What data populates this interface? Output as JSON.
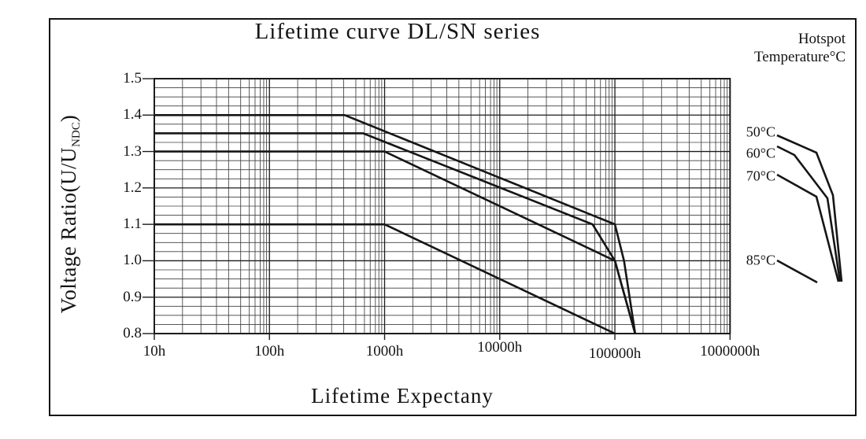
{
  "figure": {
    "title": "Lifetime curve DL/SN series",
    "x_axis_title": "Lifetime Expectany",
    "y_axis_title": {
      "prefix": "Voltage Ratio(U/U",
      "subscript": "NDC",
      "suffix": ")"
    }
  },
  "legend": {
    "title_line1": "Hotspot",
    "title_line2": "Temperature°C",
    "entries": [
      {
        "label": "50°C"
      },
      {
        "label": "60°C"
      },
      {
        "label": "70°C"
      },
      {
        "label": "85°C"
      }
    ]
  },
  "chart_data": {
    "type": "line",
    "title": "Lifetime curve DL/SN series",
    "xlabel": "Lifetime Expectany",
    "ylabel": "Voltage Ratio(U/UNDC)",
    "x_scale": "log",
    "xlim": [
      10,
      1000000
    ],
    "ylim": [
      0.8,
      1.5
    ],
    "grid": "on",
    "legend_position": "right",
    "x_tick_values": [
      10,
      100,
      1000,
      10000,
      100000,
      1000000
    ],
    "x_tick_labels": [
      "10h",
      "100h",
      "1000h",
      "10000h",
      "100000h",
      "1000000h"
    ],
    "y_tick_values": [
      1.5,
      1.4,
      1.3,
      1.2,
      1.1,
      1.0,
      0.9,
      0.8
    ],
    "y_tick_labels": [
      "1.5",
      "1.4",
      "1.3",
      "1.2",
      "1.1",
      "1.0",
      "0.9",
      "0.8"
    ],
    "y_minor_step": 0.025,
    "series": [
      {
        "name": "50°C",
        "hotspot_temperature_c": 50,
        "points": [
          [
            10,
            1.4
          ],
          [
            450,
            1.4
          ],
          [
            100000,
            1.1
          ],
          [
            120000,
            1.0
          ],
          [
            150000,
            0.8
          ]
        ]
      },
      {
        "name": "60°C",
        "hotspot_temperature_c": 60,
        "points": [
          [
            10,
            1.35
          ],
          [
            650,
            1.35
          ],
          [
            64000,
            1.1
          ],
          [
            100000,
            1.0
          ],
          [
            150000,
            0.8
          ]
        ]
      },
      {
        "name": "70°C",
        "hotspot_temperature_c": 70,
        "points": [
          [
            10,
            1.3
          ],
          [
            1000,
            1.3
          ],
          [
            100000,
            1.0
          ],
          [
            150000,
            0.8
          ]
        ]
      },
      {
        "name": "85°C",
        "hotspot_temperature_c": 85,
        "points": [
          [
            10,
            1.1
          ],
          [
            1000,
            1.1
          ],
          [
            100000,
            0.8
          ]
        ]
      }
    ]
  },
  "colors": {
    "background": "#ffffff",
    "text": "#141414",
    "curve": "#161616",
    "grid_major": "#1c1c1c",
    "grid_minor": "#3f3f3f",
    "frame": "#141414"
  }
}
